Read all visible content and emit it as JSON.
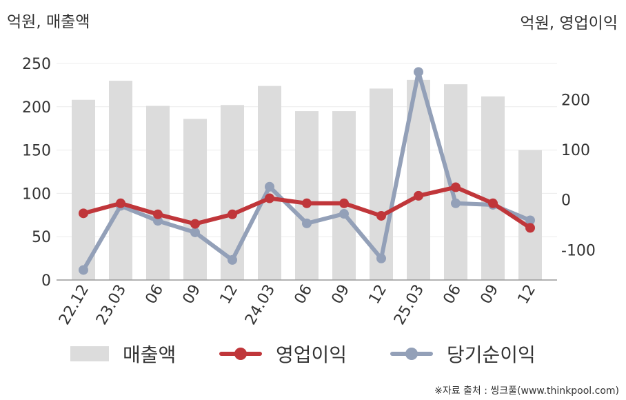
{
  "header": {
    "left_unit": "억원, 매출액",
    "right_unit": "억원, 영업이익"
  },
  "chart_data": {
    "type": "bar+line",
    "categories": [
      "22.12",
      "23.03",
      "06",
      "09",
      "12",
      "24.03",
      "06",
      "09",
      "12",
      "25.03",
      "06",
      "09",
      "12"
    ],
    "y_left": {
      "range": [
        0,
        250
      ],
      "ticks": [
        0,
        50,
        100,
        150,
        200,
        250
      ]
    },
    "y_right": {
      "range": [
        -160,
        272
      ],
      "ticks": [
        -100,
        0,
        100,
        200
      ]
    },
    "grid": true,
    "legend_position": "bottom",
    "series": [
      {
        "name": "매출액",
        "type": "bar",
        "axis": "left",
        "color": "#dcdcdc",
        "values": [
          208,
          230,
          201,
          186,
          202,
          224,
          195,
          195,
          221,
          231,
          226,
          212,
          150
        ]
      },
      {
        "name": "영업이익",
        "type": "line",
        "axis": "right",
        "color": "#c0363a",
        "values": [
          -27,
          -7,
          -29,
          -48,
          -29,
          3,
          -7,
          -7,
          -32,
          8,
          25,
          -7,
          -56
        ]
      },
      {
        "name": "당기순이익",
        "type": "line",
        "axis": "right",
        "color": "#93a0b8",
        "values": [
          -140,
          -12,
          -42,
          -65,
          -120,
          26,
          -47,
          -28,
          -117,
          255,
          -7,
          -10,
          -41
        ]
      }
    ]
  },
  "legend": {
    "sales": "매출액",
    "op": "영업이익",
    "net": "당기순이익"
  },
  "source": "※자료 출처 : 씽크풀(www.thinkpool.com)"
}
